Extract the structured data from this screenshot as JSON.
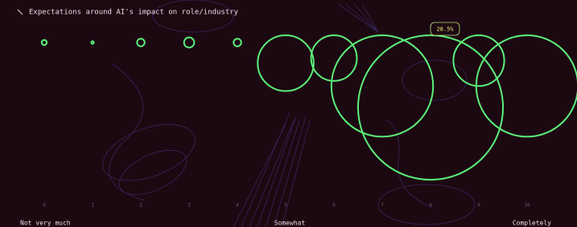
{
  "chart_data": {
    "type": "bubble",
    "title": "Expectations around AI's impact on role/industry",
    "categories": [
      "0",
      "1",
      "2",
      "3",
      "4",
      "5",
      "6",
      "7",
      "8",
      "9",
      "10"
    ],
    "values": [
      1,
      0.5,
      1.5,
      2,
      1.5,
      11,
      9,
      20,
      28.5,
      10,
      20
    ],
    "value_labels": [
      null,
      null,
      null,
      null,
      null,
      null,
      null,
      null,
      "28.5%",
      null,
      null
    ],
    "color": "#5cf07a",
    "scale_labels": [
      "Not very much",
      "Somewhat",
      "Completely"
    ]
  }
}
